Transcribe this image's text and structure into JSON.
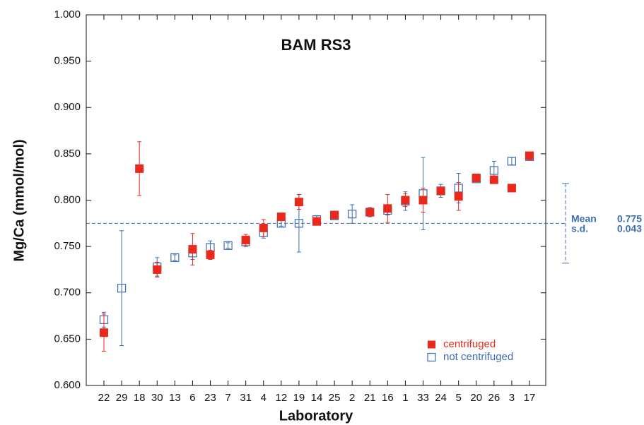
{
  "chart_data": {
    "type": "errorbar",
    "title": "BAM RS3",
    "xlabel": "Laboratory",
    "ylabel": "Mg/Ca (mmol/mol)",
    "categories": [
      "22",
      "29",
      "18",
      "30",
      "13",
      "6",
      "23",
      "7",
      "31",
      "4",
      "12",
      "19",
      "14",
      "25",
      "2",
      "21",
      "16",
      "1",
      "33",
      "24",
      "5",
      "20",
      "26",
      "3",
      "17"
    ],
    "ylim": [
      0.6,
      1.0
    ],
    "yticks": [
      {
        "value": 0.6,
        "label": "0.600"
      },
      {
        "value": 0.65,
        "label": "0.650"
      },
      {
        "value": 0.7,
        "label": "0.700"
      },
      {
        "value": 0.75,
        "label": "0.750"
      },
      {
        "value": 0.8,
        "label": "0.800"
      },
      {
        "value": 0.85,
        "label": "0.850"
      },
      {
        "value": 0.9,
        "label": "0.900"
      },
      {
        "value": 0.95,
        "label": "0.950"
      },
      {
        "value": 1.0,
        "label": "1.000"
      }
    ],
    "series": [
      {
        "name": "centrifuged",
        "color": "#e8291c",
        "filled": true,
        "values": [
          0.657,
          null,
          0.834,
          0.725,
          null,
          0.747,
          0.741,
          null,
          0.757,
          0.77,
          0.782,
          0.798,
          0.777,
          0.784,
          null,
          0.787,
          0.791,
          0.8,
          0.8,
          0.81,
          0.804,
          0.824,
          0.822,
          0.813,
          0.848
        ],
        "errors": [
          0.02,
          null,
          0.029,
          0.008,
          null,
          0.017,
          0.005,
          null,
          0.006,
          0.009,
          0.003,
          0.008,
          0.003,
          0.003,
          null,
          0.004,
          0.015,
          0.007,
          0.013,
          0.004,
          0.015,
          0.003,
          0.003,
          null,
          0.004
        ]
      },
      {
        "name": "not centrifuged",
        "color": "#3b6db3",
        "filled": false,
        "values": [
          0.671,
          0.705,
          null,
          0.728,
          0.738,
          0.743,
          0.749,
          0.751,
          0.755,
          0.765,
          0.775,
          0.775,
          0.779,
          0.783,
          0.785,
          0.787,
          0.789,
          0.799,
          0.807,
          0.81,
          0.813,
          0.823,
          0.832,
          0.842,
          0.847
        ],
        "errors": [
          0.008,
          0.062,
          null,
          0.01,
          0.003,
          0.007,
          0.007,
          0.003,
          0.005,
          0.006,
          0.003,
          0.031,
          0.004,
          0.003,
          0.01,
          0.005,
          0.005,
          0.01,
          0.039,
          0.007,
          0.016,
          0.003,
          0.01,
          0.004,
          0.004
        ]
      }
    ],
    "mean": {
      "label": "Mean",
      "value": 0.775
    },
    "sd": {
      "label": "s.d.",
      "value": 0.043
    },
    "annotation_color": "#3b6db3",
    "legend": "lower right"
  }
}
